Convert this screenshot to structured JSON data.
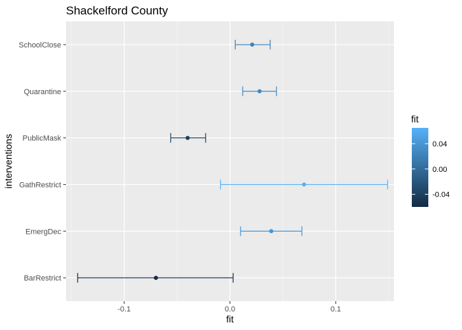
{
  "chart_data": {
    "type": "errorbar",
    "title": "Shackelford County",
    "xlabel": "fit",
    "ylabel": "interventions",
    "xlim": [
      -0.155,
      0.155
    ],
    "x_ticks": [
      -0.1,
      0.0,
      0.1
    ],
    "x_tick_labels": [
      "-0.1",
      "0.0",
      "0.1"
    ],
    "categories": [
      "SchoolClose",
      "Quarantine",
      "PublicMask",
      "GathRestrict",
      "EmergDec",
      "BarRestrict"
    ],
    "points": [
      {
        "category": "SchoolClose",
        "fit": 0.021,
        "lower": 0.005,
        "upper": 0.038
      },
      {
        "category": "Quarantine",
        "fit": 0.028,
        "lower": 0.012,
        "upper": 0.044
      },
      {
        "category": "PublicMask",
        "fit": -0.04,
        "lower": -0.056,
        "upper": -0.023
      },
      {
        "category": "GathRestrict",
        "fit": 0.07,
        "lower": -0.009,
        "upper": 0.149
      },
      {
        "category": "EmergDec",
        "fit": 0.039,
        "lower": 0.01,
        "upper": 0.068
      },
      {
        "category": "BarRestrict",
        "fit": -0.07,
        "lower": -0.144,
        "upper": 0.003
      }
    ],
    "grid": true,
    "legend": {
      "title": "fit",
      "position": "right",
      "range": [
        -0.06,
        0.065
      ],
      "ticks": [
        0.04,
        0.0,
        -0.04
      ],
      "tick_labels": [
        "0.04",
        "0.00",
        "-0.04"
      ],
      "low_color": "#132b43",
      "high_color": "#56b1f7"
    }
  }
}
